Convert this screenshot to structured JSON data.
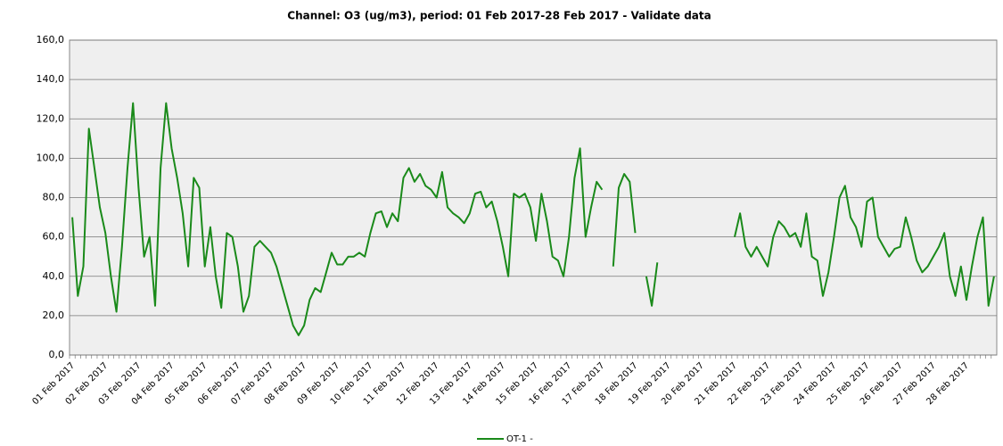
{
  "chart_data": {
    "type": "line",
    "title": "Channel: O3 (ug/m3), period: 01 Feb 2017-28 Feb 2017 - Validate data",
    "categories": [
      "01 Feb 2017",
      null,
      null,
      null,
      null,
      null,
      "02 Feb 2017",
      null,
      null,
      null,
      null,
      null,
      "03 Feb 2017",
      null,
      null,
      null,
      null,
      null,
      "04 Feb 2017",
      null,
      null,
      null,
      null,
      null,
      "05 Feb 2017",
      null,
      null,
      null,
      null,
      null,
      "06 Feb 2017",
      null,
      null,
      null,
      null,
      null,
      "07 Feb 2017",
      null,
      null,
      null,
      null,
      null,
      "08 Feb 2017",
      null,
      null,
      null,
      null,
      null,
      "09 Feb 2017",
      null,
      null,
      null,
      null,
      null,
      "10 Feb 2017",
      null,
      null,
      null,
      null,
      null,
      "11 Feb 2017",
      null,
      null,
      null,
      null,
      null,
      "12 Feb 2017",
      null,
      null,
      null,
      null,
      null,
      "13 Feb 2017",
      null,
      null,
      null,
      null,
      null,
      "14 Feb 2017",
      null,
      null,
      null,
      null,
      null,
      "15 Feb 2017",
      null,
      null,
      null,
      null,
      null,
      "16 Feb 2017",
      null,
      null,
      null,
      null,
      null,
      "17 Feb 2017",
      null,
      null,
      null,
      null,
      null,
      "18 Feb 2017",
      null,
      null,
      null,
      null,
      null,
      "19 Feb 2017",
      null,
      null,
      null,
      null,
      null,
      "20 Feb 2017",
      null,
      null,
      null,
      null,
      null,
      "21 Feb 2017",
      null,
      null,
      null,
      null,
      null,
      "22 Feb 2017",
      null,
      null,
      null,
      null,
      null,
      "23 Feb 2017",
      null,
      null,
      null,
      null,
      null,
      "24 Feb 2017",
      null,
      null,
      null,
      null,
      null,
      "25 Feb 2017",
      null,
      null,
      null,
      null,
      null,
      "26 Feb 2017",
      null,
      null,
      null,
      null,
      null,
      "27 Feb 2017",
      null,
      null,
      null,
      null,
      null,
      "28 Feb 2017",
      null,
      null,
      null,
      null,
      null
    ],
    "series": [
      {
        "name": "OT-1 -",
        "color": "#1a8a1a",
        "values": [
          70,
          30,
          45,
          115,
          95,
          75,
          62,
          40,
          22,
          55,
          95,
          128,
          85,
          50,
          60,
          25,
          95,
          128,
          105,
          90,
          72,
          45,
          90,
          85,
          45,
          65,
          40,
          24,
          62,
          60,
          45,
          22,
          30,
          55,
          58,
          55,
          52,
          45,
          35,
          25,
          15,
          10,
          15,
          28,
          34,
          32,
          42,
          52,
          46,
          46,
          50,
          50,
          52,
          50,
          62,
          72,
          73,
          65,
          72,
          68,
          90,
          95,
          88,
          92,
          86,
          84,
          80,
          93,
          75,
          72,
          70,
          67,
          72,
          82,
          83,
          75,
          78,
          68,
          55,
          40,
          82,
          80,
          82,
          75,
          58,
          82,
          68,
          50,
          48,
          40,
          60,
          90,
          105,
          60,
          75,
          88,
          84,
          null,
          45,
          85,
          92,
          88,
          62,
          null,
          40,
          25,
          47,
          null,
          null,
          null,
          null,
          null,
          null,
          null,
          null,
          null,
          null,
          null,
          null,
          null,
          60,
          72,
          55,
          50,
          55,
          50,
          45,
          60,
          68,
          65,
          60,
          62,
          55,
          72,
          50,
          48,
          30,
          42,
          60,
          80,
          86,
          70,
          65,
          55,
          78,
          80,
          60,
          55,
          50,
          54,
          55,
          70,
          60,
          48,
          42,
          45,
          50,
          55,
          62,
          40,
          30,
          45,
          28,
          45,
          60,
          70,
          25,
          40
        ]
      }
    ],
    "ylim": [
      0,
      160
    ],
    "yticks": [
      {
        "value": 0,
        "label": "0,0"
      },
      {
        "value": 20,
        "label": "20,0"
      },
      {
        "value": 40,
        "label": "40,0"
      },
      {
        "value": 60,
        "label": "60,0"
      },
      {
        "value": 80,
        "label": "80,0"
      },
      {
        "value": 100,
        "label": "100,0"
      },
      {
        "value": 120,
        "label": "120,0"
      },
      {
        "value": 140,
        "label": "140,0"
      },
      {
        "value": 160,
        "label": "160,0"
      }
    ],
    "grid": true
  }
}
